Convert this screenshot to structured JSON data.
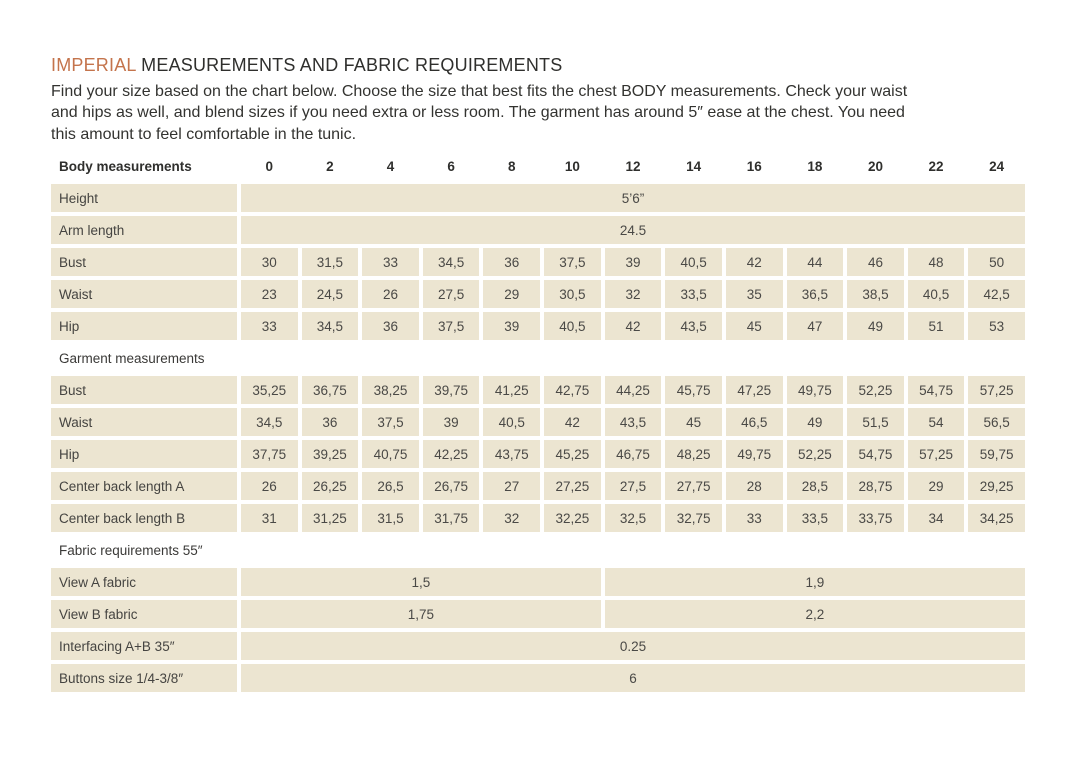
{
  "title": {
    "accent": "IMPERIAL",
    "rest": " MEASUREMENTS AND FABRIC REQUIREMENTS"
  },
  "intro": {
    "lines": [
      "Find your size based on the chart below. Choose the size that best fits the chest BODY measurements.  Check your waist",
      "and hips as well, and blend sizes if you need extra or less room. The garment has around 5″ ease at the chest. You need",
      "this amount to feel comfortable in the tunic."
    ]
  },
  "table": {
    "header": {
      "label": "Body measurements",
      "sizes": [
        "0",
        "2",
        "4",
        "6",
        "8",
        "10",
        "12",
        "14",
        "16",
        "18",
        "20",
        "22",
        "24"
      ]
    },
    "rows": [
      {
        "label": "Height",
        "type": "span-all",
        "value": "5’6”"
      },
      {
        "label": "Arm length",
        "type": "span-all",
        "value": "24.5"
      },
      {
        "label": "Bust",
        "type": "cells",
        "values": [
          "30",
          "31,5",
          "33",
          "34,5",
          "36",
          "37,5",
          "39",
          "40,5",
          "42",
          "44",
          "46",
          "48",
          "50"
        ]
      },
      {
        "label": "Waist",
        "type": "cells",
        "values": [
          "23",
          "24,5",
          "26",
          "27,5",
          "29",
          "30,5",
          "32",
          "33,5",
          "35",
          "36,5",
          "38,5",
          "40,5",
          "42,5"
        ]
      },
      {
        "label": "Hip",
        "type": "cells",
        "values": [
          "33",
          "34,5",
          "36",
          "37,5",
          "39",
          "40,5",
          "42",
          "43,5",
          "45",
          "47",
          "49",
          "51",
          "53"
        ]
      },
      {
        "label": "Garment measurements",
        "type": "section"
      },
      {
        "label": "Bust",
        "type": "cells",
        "values": [
          "35,25",
          "36,75",
          "38,25",
          "39,75",
          "41,25",
          "42,75",
          "44,25",
          "45,75",
          "47,25",
          "49,75",
          "52,25",
          "54,75",
          "57,25"
        ]
      },
      {
        "label": "Waist",
        "type": "cells",
        "values": [
          "34,5",
          "36",
          "37,5",
          "39",
          "40,5",
          "42",
          "43,5",
          "45",
          "46,5",
          "49",
          "51,5",
          "54",
          "56,5"
        ]
      },
      {
        "label": "Hip",
        "type": "cells",
        "values": [
          "37,75",
          "39,25",
          "40,75",
          "42,25",
          "43,75",
          "45,25",
          "46,75",
          "48,25",
          "49,75",
          "52,25",
          "54,75",
          "57,25",
          "59,75"
        ]
      },
      {
        "label": "Center back length A",
        "type": "cells",
        "values": [
          "26",
          "26,25",
          "26,5",
          "26,75",
          "27",
          "27,25",
          "27,5",
          "27,75",
          "28",
          "28,5",
          "28,75",
          "29",
          "29,25"
        ]
      },
      {
        "label": "Center back length B",
        "type": "cells",
        "values": [
          "31",
          "31,25",
          "31,5",
          "31,75",
          "32",
          "32,25",
          "32,5",
          "32,75",
          "33",
          "33,5",
          "33,75",
          "34",
          "34,25"
        ]
      },
      {
        "label": "Fabric requirements 55″",
        "type": "section"
      },
      {
        "label": "View A fabric",
        "type": "span-split",
        "values": [
          "1,5",
          "1,9"
        ]
      },
      {
        "label": "View B fabric",
        "type": "span-split",
        "values": [
          "1,75",
          "2,2"
        ]
      },
      {
        "label": "Interfacing  A+B 35″",
        "type": "span-all",
        "value": "0.25"
      },
      {
        "label": "Buttons size 1/4-3/8″",
        "type": "span-all",
        "value": "6"
      }
    ]
  },
  "colors": {
    "accent": "#c4744c",
    "cell_background": "#ece5d1",
    "text": "#3e3d3b"
  }
}
